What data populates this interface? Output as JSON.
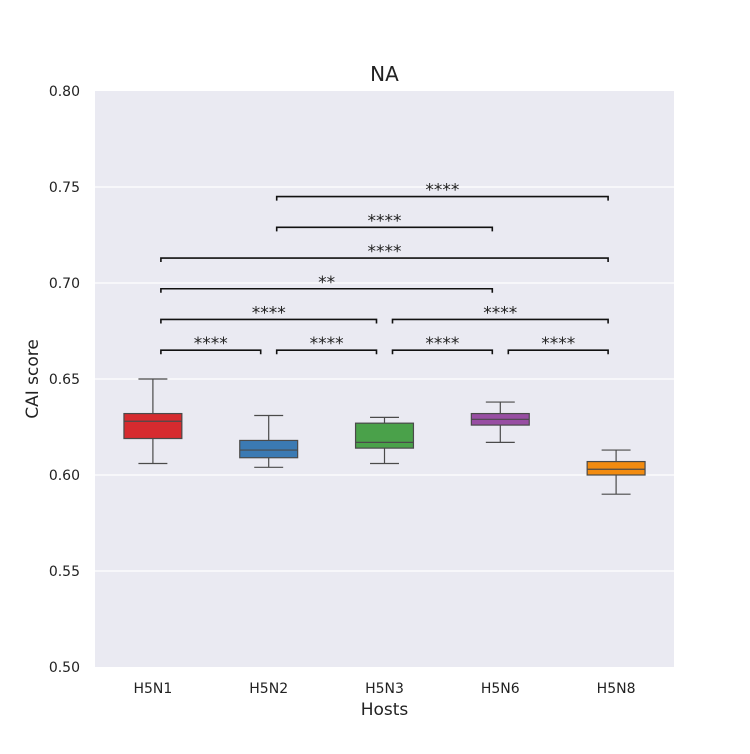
{
  "chart_data": {
    "type": "box",
    "title": "NA",
    "xlabel": "Hosts",
    "ylabel": "CAI score",
    "ylim": [
      0.5,
      0.8
    ],
    "yticks": [
      "0.50",
      "0.55",
      "0.60",
      "0.65",
      "0.70",
      "0.75",
      "0.80"
    ],
    "grid": true,
    "categories": [
      "H5N1",
      "H5N2",
      "H5N3",
      "H5N6",
      "H5N8"
    ],
    "boxes": [
      {
        "category": "H5N1",
        "color": "#d62b2f",
        "whisker_low": 0.606,
        "q1": 0.619,
        "median": 0.628,
        "q3": 0.632,
        "whisker_high": 0.65
      },
      {
        "category": "H5N2",
        "color": "#3b7ab3",
        "whisker_low": 0.604,
        "q1": 0.609,
        "median": 0.613,
        "q3": 0.618,
        "whisker_high": 0.631
      },
      {
        "category": "H5N3",
        "color": "#4aa14a",
        "whisker_low": 0.606,
        "q1": 0.614,
        "median": 0.617,
        "q3": 0.627,
        "whisker_high": 0.63
      },
      {
        "category": "H5N6",
        "color": "#984ea3",
        "whisker_low": 0.617,
        "q1": 0.626,
        "median": 0.629,
        "q3": 0.632,
        "whisker_high": 0.638
      },
      {
        "category": "H5N8",
        "color": "#f28b10",
        "whisker_low": 0.59,
        "q1": 0.6,
        "median": 0.603,
        "q3": 0.607,
        "whisker_high": 0.613
      }
    ],
    "annotations": [
      {
        "from": "H5N1",
        "to": "H5N2",
        "y": 0.665,
        "label": "****"
      },
      {
        "from": "H5N2",
        "to": "H5N3",
        "y": 0.665,
        "label": "****"
      },
      {
        "from": "H5N3",
        "to": "H5N6",
        "y": 0.665,
        "label": "****"
      },
      {
        "from": "H5N6",
        "to": "H5N8",
        "y": 0.665,
        "label": "****"
      },
      {
        "from": "H5N1",
        "to": "H5N3",
        "y": 0.681,
        "label": "****"
      },
      {
        "from": "H5N3",
        "to": "H5N8",
        "y": 0.681,
        "label": "****"
      },
      {
        "from": "H5N1",
        "to": "H5N6",
        "y": 0.697,
        "label": "**"
      },
      {
        "from": "H5N1",
        "to": "H5N8",
        "y": 0.713,
        "label": "****"
      },
      {
        "from": "H5N2",
        "to": "H5N6",
        "y": 0.729,
        "label": "****"
      },
      {
        "from": "H5N2",
        "to": "H5N8",
        "y": 0.745,
        "label": "****"
      }
    ]
  }
}
